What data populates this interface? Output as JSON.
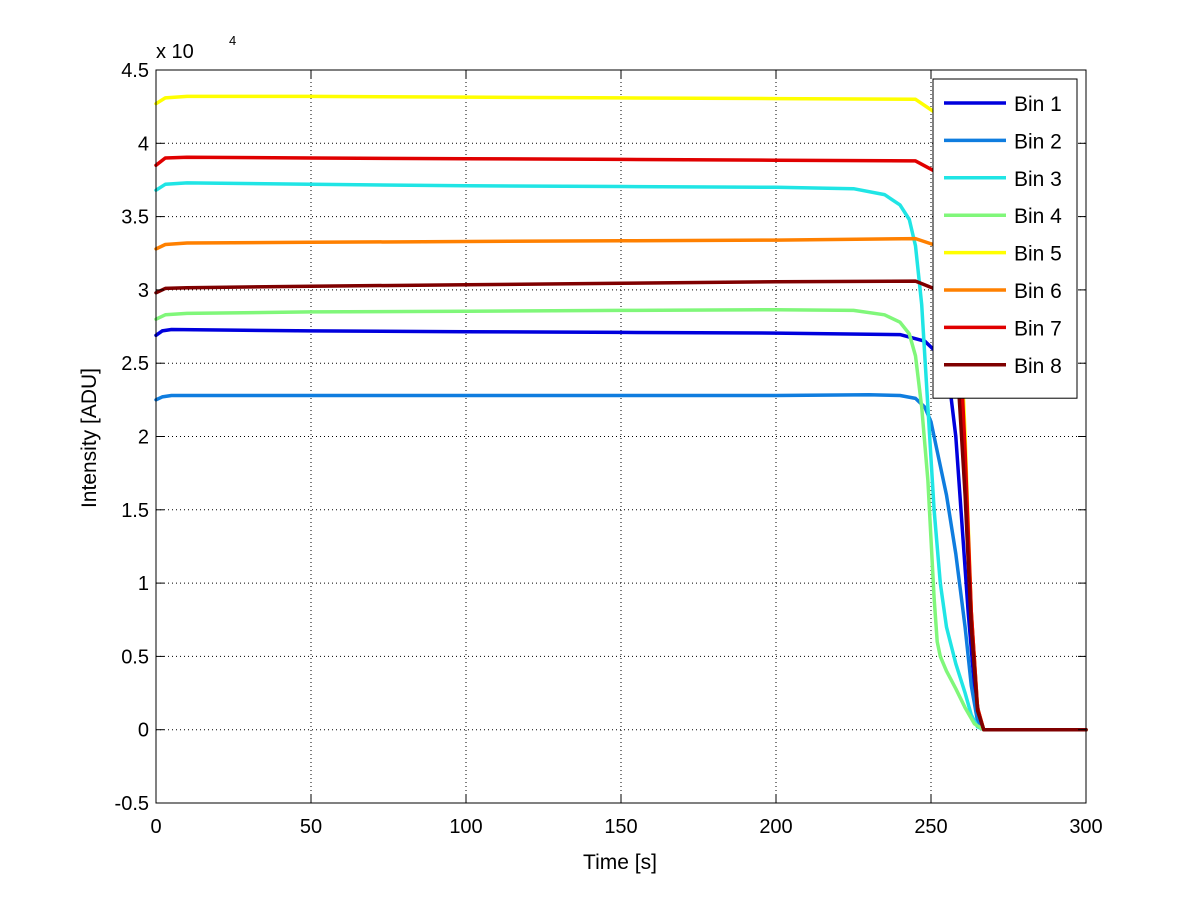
{
  "chart_data": {
    "type": "line",
    "xlabel": "Time [s]",
    "ylabel": "Intensity [ADU]",
    "xlim": [
      0,
      300
    ],
    "ylim": [
      -5000,
      45000
    ],
    "xticks": [
      0,
      50,
      100,
      150,
      200,
      250,
      300
    ],
    "yticks": [
      -5000,
      0,
      5000,
      10000,
      15000,
      20000,
      25000,
      30000,
      35000,
      40000,
      45000
    ],
    "ytick_labels": [
      "-0.5",
      "0",
      "0.5",
      "1",
      "1.5",
      "2",
      "2.5",
      "3",
      "3.5",
      "4",
      "4.5"
    ],
    "y_exponent_label": {
      "base": "x 10",
      "exponent": "4"
    },
    "grid": true,
    "legend_position": "top-right",
    "series": [
      {
        "name": "Bin 1",
        "color": "#0000dd",
        "x": [
          0,
          2,
          5,
          50,
          100,
          150,
          200,
          240,
          248,
          253,
          256,
          258,
          260,
          262,
          264,
          266,
          267,
          300
        ],
        "y": [
          26900,
          27200,
          27300,
          27200,
          27150,
          27100,
          27050,
          26950,
          26500,
          25500,
          23500,
          20000,
          14000,
          8000,
          3000,
          300,
          0,
          0
        ]
      },
      {
        "name": "Bin 2",
        "color": "#0f7ddf",
        "x": [
          0,
          2,
          5,
          50,
          100,
          150,
          200,
          230,
          240,
          245,
          248,
          250,
          252,
          255,
          258,
          261,
          263,
          265,
          267,
          300
        ],
        "y": [
          22500,
          22700,
          22800,
          22800,
          22800,
          22800,
          22800,
          22850,
          22800,
          22600,
          22000,
          21000,
          19000,
          16000,
          12000,
          7000,
          3000,
          600,
          0,
          0
        ]
      },
      {
        "name": "Bin 3",
        "color": "#20e5e5",
        "x": [
          0,
          3,
          10,
          50,
          100,
          150,
          200,
          225,
          235,
          240,
          243,
          245,
          247,
          249,
          251,
          253,
          255,
          258,
          261,
          263,
          265,
          267,
          300
        ],
        "y": [
          36800,
          37200,
          37300,
          37200,
          37100,
          37050,
          37000,
          36900,
          36500,
          35800,
          34800,
          33000,
          29000,
          22000,
          15000,
          10000,
          7000,
          4500,
          2500,
          1000,
          200,
          0,
          0
        ]
      },
      {
        "name": "Bin 4",
        "color": "#80f77a",
        "x": [
          0,
          3,
          10,
          50,
          100,
          150,
          200,
          225,
          235,
          240,
          243,
          245,
          247,
          249,
          250,
          251,
          252,
          253,
          255,
          258,
          261,
          264,
          267,
          300
        ],
        "y": [
          28000,
          28300,
          28400,
          28500,
          28550,
          28600,
          28650,
          28600,
          28300,
          27800,
          27000,
          25500,
          22000,
          17000,
          13000,
          9000,
          6000,
          5000,
          4000,
          2800,
          1500,
          400,
          0,
          0
        ]
      },
      {
        "name": "Bin 5",
        "color": "#ffff00",
        "x": [
          0,
          3,
          10,
          50,
          100,
          150,
          200,
          245,
          252,
          256,
          259,
          261,
          263,
          265,
          267,
          300
        ],
        "y": [
          42700,
          43100,
          43200,
          43200,
          43150,
          43100,
          43050,
          43000,
          42000,
          38000,
          30000,
          20000,
          8000,
          1500,
          0,
          0
        ]
      },
      {
        "name": "Bin 6",
        "color": "#ff8000",
        "x": [
          0,
          3,
          10,
          50,
          100,
          150,
          200,
          245,
          252,
          256,
          259,
          261,
          263,
          265,
          267,
          300
        ],
        "y": [
          32800,
          33100,
          33200,
          33250,
          33300,
          33350,
          33400,
          33500,
          33000,
          31000,
          26000,
          18000,
          8000,
          1500,
          0,
          0
        ]
      },
      {
        "name": "Bin 7",
        "color": "#e00000",
        "x": [
          0,
          3,
          10,
          50,
          100,
          150,
          200,
          245,
          252,
          256,
          259,
          261,
          263,
          265,
          267,
          300
        ],
        "y": [
          38500,
          39000,
          39050,
          39000,
          38950,
          38900,
          38850,
          38800,
          38000,
          35000,
          28000,
          19000,
          8000,
          1500,
          0,
          0
        ]
      },
      {
        "name": "Bin 8",
        "color": "#7f0000",
        "x": [
          0,
          3,
          10,
          50,
          100,
          150,
          200,
          245,
          252,
          256,
          259,
          261,
          263,
          265,
          267,
          300
        ],
        "y": [
          29800,
          30100,
          30150,
          30250,
          30350,
          30450,
          30550,
          30600,
          30000,
          28000,
          23000,
          16000,
          7000,
          1300,
          0,
          0
        ]
      }
    ]
  }
}
